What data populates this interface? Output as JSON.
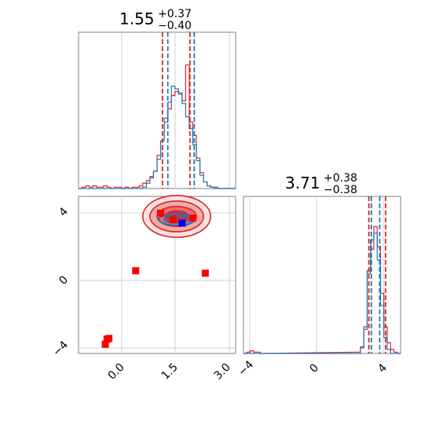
{
  "colors": {
    "reference": "#d62728",
    "posterior": "#1f77b4",
    "truth_marker": "#0000ff",
    "fill_dark": "#e8272b",
    "fill_light": "#f4a8a8"
  },
  "chart_data": {
    "type": "corner",
    "panels": [
      {
        "kind": "histogram",
        "parameter_index": 0,
        "title_main": "1.55",
        "title_sup": "+0.37",
        "title_sub": "−0.40",
        "xlim": [
          -1.2,
          3.2
        ],
        "quantiles": {
          "reference": [
            1.15,
            1.92
          ],
          "posterior": [
            1.3,
            2.04
          ]
        },
        "bin_centers": [
          -1.15,
          -1.05,
          -0.95,
          -0.85,
          -0.75,
          -0.65,
          -0.55,
          -0.45,
          -0.35,
          -0.25,
          -0.15,
          -0.05,
          0.05,
          0.15,
          0.25,
          0.35,
          0.45,
          0.55,
          0.65,
          0.75,
          0.85,
          0.95,
          1.05,
          1.15,
          1.25,
          1.35,
          1.45,
          1.55,
          1.65,
          1.75,
          1.85,
          1.95,
          2.05,
          2.15,
          2.25,
          2.35,
          2.45,
          2.55,
          2.65,
          2.75,
          2.85,
          2.95,
          3.05,
          3.15
        ],
        "reference_counts": [
          0,
          0.01,
          0.02,
          0.01,
          0.02,
          0.01,
          0.01,
          0.02,
          0.01,
          0,
          0.01,
          0.01,
          0,
          0.01,
          0,
          0.01,
          0.01,
          0.02,
          0.04,
          0.06,
          0.09,
          0.13,
          0.25,
          0.36,
          0.5,
          0.6,
          0.7,
          0.73,
          0.72,
          0.66,
          0.93,
          0.5,
          0.4,
          0.23,
          0.1,
          0.05,
          0.02,
          0.01,
          0.01,
          0,
          0,
          0,
          0,
          0
        ],
        "posterior_counts": [
          0,
          0,
          0,
          0,
          0,
          0,
          0,
          0,
          0,
          0,
          0,
          0,
          0,
          0,
          0,
          0,
          0,
          0,
          0.01,
          0.04,
          0.08,
          0.13,
          0.22,
          0.36,
          0.53,
          0.65,
          0.77,
          0.75,
          0.71,
          0.64,
          0.54,
          0.45,
          0.33,
          0.21,
          0.12,
          0.05,
          0.02,
          0.01,
          0,
          0,
          0,
          0,
          0,
          0
        ]
      },
      {
        "kind": "histogram",
        "parameter_index": 1,
        "title_main": "3.71",
        "title_sup": "+0.38",
        "title_sub": "−0.38",
        "xlim": [
          -4.4,
          5.0
        ],
        "xticks": [
          -4,
          0,
          4
        ],
        "xtick_labels": [
          "−4",
          "0",
          "4"
        ],
        "quantiles": {
          "reference": [
            3.1,
            4.1
          ],
          "posterior": [
            3.25,
            3.75
          ]
        },
        "bin_centers": [
          -4.3,
          -4.1,
          -3.9,
          -3.7,
          -3.5,
          -3.3,
          -3.1,
          2.5,
          2.7,
          2.9,
          3.1,
          3.3,
          3.5,
          3.7,
          3.9,
          4.1,
          4.3,
          4.5,
          4.7,
          4.9
        ],
        "reference_counts": [
          0,
          0.01,
          0.02,
          0.01,
          0.01,
          0,
          0,
          0.01,
          0.05,
          0.18,
          0.62,
          0.78,
          0.95,
          0.8,
          0.45,
          0.2,
          0.08,
          0.03,
          0.01,
          0
        ],
        "posterior_counts": [
          0,
          0,
          0,
          0,
          0,
          0,
          0,
          0,
          0.04,
          0.2,
          0.6,
          0.85,
          0.9,
          0.7,
          0.36,
          0.12,
          0.03,
          0,
          0,
          0
        ]
      },
      {
        "kind": "2d",
        "xlim": [
          -1.2,
          3.2
        ],
        "ylim": [
          -4.4,
          5.0
        ],
        "xticks": [
          0.0,
          1.5,
          3.0
        ],
        "xtick_labels": [
          "0.0",
          "1.5",
          "3.0"
        ],
        "yticks": [
          -4,
          0,
          4
        ],
        "ytick_labels": [
          "−4",
          "0",
          "4"
        ],
        "density_center": [
          1.55,
          3.8
        ],
        "truth_point": [
          1.7,
          3.4
        ],
        "reference_points": [
          [
            1.1,
            4.0
          ],
          [
            1.45,
            3.6
          ],
          [
            2.0,
            3.7
          ],
          [
            0.4,
            0.55
          ],
          [
            2.35,
            0.4
          ],
          [
            -0.35,
            -3.5
          ],
          [
            -0.45,
            -3.85
          ],
          [
            -0.4,
            -3.55
          ]
        ],
        "contour_levels": [
          {
            "rx": 0.95,
            "ry": 1.25
          },
          {
            "rx": 0.75,
            "ry": 0.92
          },
          {
            "rx": 0.55,
            "ry": 0.6
          },
          {
            "rx": 0.33,
            "ry": 0.33
          }
        ]
      }
    ]
  }
}
